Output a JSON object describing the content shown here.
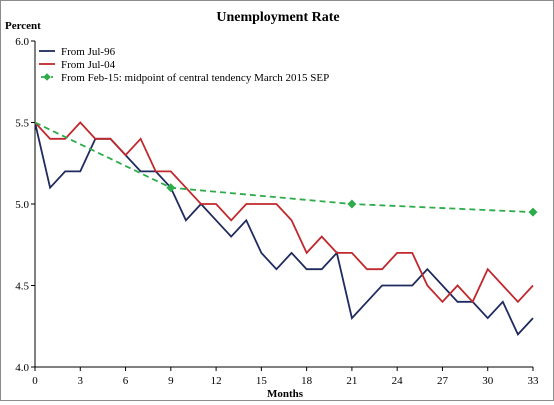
{
  "chart_data": {
    "type": "line",
    "title": "Unemployment Rate",
    "ylabel": "Percent",
    "xlabel": "Months",
    "ylim": [
      4.0,
      6.0
    ],
    "xlim": [
      0,
      33
    ],
    "yticks": [
      "4.0",
      "4.5",
      "5.0",
      "5.5",
      "6.0"
    ],
    "xticks": [
      "0",
      "3",
      "6",
      "9",
      "12",
      "15",
      "18",
      "21",
      "24",
      "27",
      "30",
      "33"
    ],
    "legend_position": "top-left",
    "series": [
      {
        "name": "From Jul-96",
        "color": "#1f2a5e",
        "style": "solid",
        "x": [
          0,
          1,
          2,
          3,
          4,
          5,
          6,
          7,
          8,
          9,
          10,
          11,
          12,
          13,
          14,
          15,
          16,
          17,
          18,
          19,
          20,
          21,
          22,
          23,
          24,
          25,
          26,
          27,
          28,
          29,
          30,
          31,
          32,
          33
        ],
        "y": [
          5.5,
          5.1,
          5.2,
          5.2,
          5.4,
          5.4,
          5.3,
          5.2,
          5.2,
          5.1,
          4.9,
          5.0,
          4.9,
          4.8,
          4.9,
          4.7,
          4.6,
          4.7,
          4.6,
          4.6,
          4.7,
          4.3,
          4.4,
          4.5,
          4.5,
          4.5,
          4.6,
          4.5,
          4.4,
          4.4,
          4.3,
          4.4,
          4.2,
          4.3
        ]
      },
      {
        "name": "From Jul-04",
        "color": "#c0282d",
        "style": "solid",
        "x": [
          0,
          1,
          2,
          3,
          4,
          5,
          6,
          7,
          8,
          9,
          10,
          11,
          12,
          13,
          14,
          15,
          16,
          17,
          18,
          19,
          20,
          21,
          22,
          23,
          24,
          25,
          26,
          27,
          28,
          29,
          30,
          31,
          32,
          33
        ],
        "y": [
          5.5,
          5.4,
          5.4,
          5.5,
          5.4,
          5.4,
          5.3,
          5.4,
          5.2,
          5.2,
          5.1,
          5.0,
          5.0,
          4.9,
          5.0,
          5.0,
          5.0,
          4.9,
          4.7,
          4.8,
          4.7,
          4.7,
          4.6,
          4.6,
          4.7,
          4.7,
          4.5,
          4.4,
          4.5,
          4.4,
          4.6,
          4.5,
          4.4,
          4.5
        ]
      },
      {
        "name": "From Feb-15: midpoint of central tendency March 2015 SEP",
        "color": "#2eab4a",
        "style": "dashed",
        "marker": "diamond",
        "markers_x": [
          9,
          21,
          33
        ],
        "x": [
          0,
          9,
          21,
          33
        ],
        "y": [
          5.5,
          5.1,
          5.0,
          4.95
        ]
      }
    ]
  }
}
